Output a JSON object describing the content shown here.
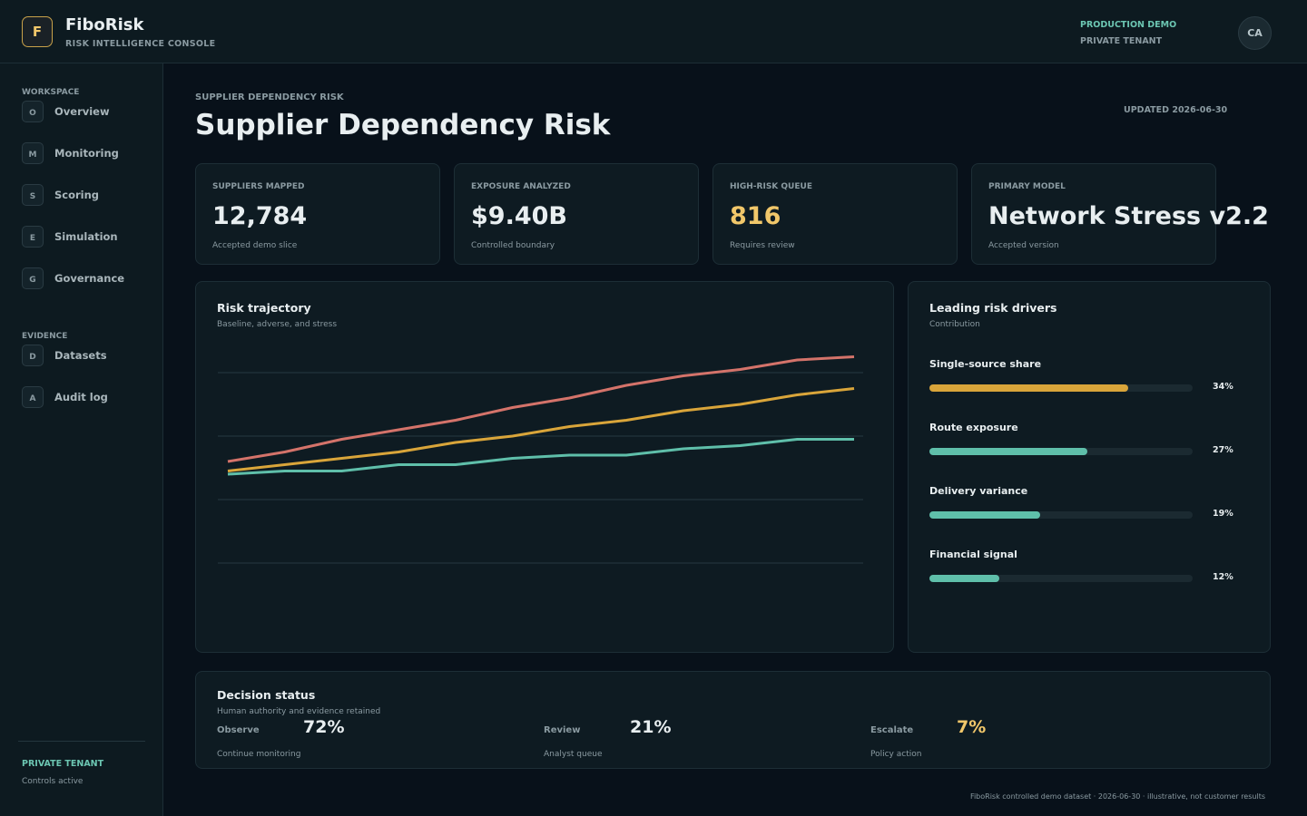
{
  "header": {
    "logo": "F",
    "brand": "FiboRisk",
    "tagline": "RISK INTELLIGENCE CONSOLE",
    "environment": "PRODUCTION DEMO",
    "tenant": "PRIVATE TENANT",
    "avatar": "CA"
  },
  "sidebar": {
    "sections": [
      {
        "title": "WORKSPACE",
        "items": [
          {
            "icon": "O",
            "label": "Overview"
          },
          {
            "icon": "M",
            "label": "Monitoring"
          },
          {
            "icon": "S",
            "label": "Scoring"
          },
          {
            "icon": "E",
            "label": "Simulation"
          },
          {
            "icon": "G",
            "label": "Governance"
          }
        ]
      },
      {
        "title": "EVIDENCE",
        "items": [
          {
            "icon": "D",
            "label": "Datasets"
          },
          {
            "icon": "A",
            "label": "Audit log"
          }
        ]
      }
    ],
    "footer": {
      "title": "PRIVATE TENANT",
      "note": "Controls active"
    }
  },
  "page": {
    "eyebrow": "SUPPLIER DEPENDENCY RISK",
    "title": "Supplier Dependency Risk",
    "updated": "UPDATED 2026-06-30"
  },
  "kpis": [
    {
      "label": "SUPPLIERS MAPPED",
      "value": "12,784",
      "note": "Accepted demo slice"
    },
    {
      "label": "EXPOSURE ANALYZED",
      "value": "$9.40B",
      "note": "Controlled boundary"
    },
    {
      "label": "HIGH-RISK QUEUE",
      "value": "816",
      "note": "Requires review"
    },
    {
      "label": "PRIMARY MODEL",
      "value": "Network Stress v2.2",
      "note": "Accepted version"
    }
  ],
  "chart_data": [
    {
      "type": "line",
      "title": "Risk trajectory",
      "subtitle": "Baseline, adverse, and stress",
      "categories": [
        null,
        null,
        null,
        null,
        null,
        null,
        null,
        null,
        null,
        null,
        null,
        null
      ],
      "ylim": [
        0,
        100
      ],
      "yticks": [
        20,
        40,
        60,
        80
      ],
      "grid": true,
      "series": [
        {
          "color": "#d4736a",
          "values": [
            52,
            55,
            59,
            62,
            65,
            69,
            72,
            76,
            79,
            81,
            84,
            85
          ]
        },
        {
          "color": "#d9a53a",
          "values": [
            49,
            51,
            53,
            55,
            58,
            60,
            63,
            65,
            68,
            70,
            73,
            75
          ]
        },
        {
          "color": "#5fbfaa",
          "values": [
            48,
            49,
            49,
            51,
            51,
            53,
            54,
            54,
            56,
            57,
            59,
            59
          ]
        }
      ]
    },
    {
      "type": "bar",
      "title": "Leading risk drivers",
      "subtitle": "Contribution",
      "categories": [
        "Single-source share",
        "Route exposure",
        "Delivery variance",
        "Financial signal"
      ],
      "values": [
        34,
        27,
        19,
        12
      ],
      "value_labels": [
        "34%",
        "27%",
        "19%",
        "12%"
      ],
      "colors": [
        "#d9a53a",
        "#5fbfaa",
        "#5fbfaa",
        "#5fbfaa"
      ],
      "xlim": [
        0,
        45
      ]
    }
  ],
  "decision": {
    "title": "Decision status",
    "subtitle": "Human authority and evidence retained",
    "items": [
      {
        "label": "Observe",
        "value": "72%",
        "note": "Continue monitoring"
      },
      {
        "label": "Review",
        "value": "21%",
        "note": "Analyst queue"
      },
      {
        "label": "Escalate",
        "value": "7%",
        "note": "Policy action"
      }
    ]
  },
  "footer": "FiboRisk controlled demo dataset · 2026-06-30 · illustrative, not customer results"
}
